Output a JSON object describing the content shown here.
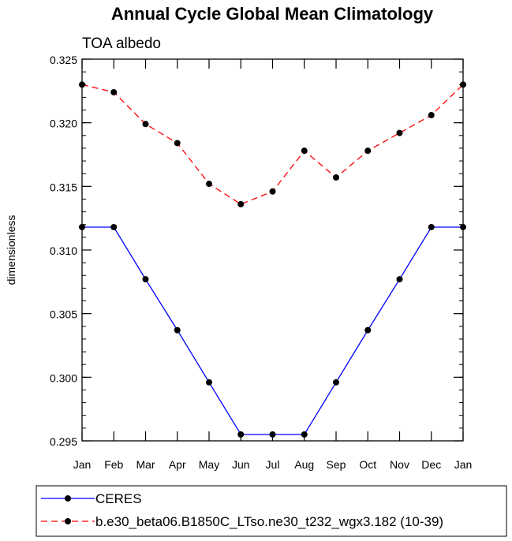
{
  "chart_data": {
    "type": "line",
    "title": "Annual Cycle Global Mean Climatology",
    "subtitle": "TOA albedo",
    "xlabel": "",
    "ylabel": "dimensionless",
    "categories": [
      "Jan",
      "Feb",
      "Mar",
      "Apr",
      "May",
      "Jun",
      "Jul",
      "Aug",
      "Sep",
      "Oct",
      "Nov",
      "Dec",
      "Jan"
    ],
    "ylim": [
      0.295,
      0.325
    ],
    "yticks": [
      "0.295",
      "0.300",
      "0.305",
      "0.310",
      "0.315",
      "0.320",
      "0.325"
    ],
    "ytick_values": [
      0.295,
      0.3,
      0.305,
      0.31,
      0.315,
      0.32,
      0.325
    ],
    "legend_position": "bottom",
    "series": [
      {
        "name": "CERES",
        "color": "#0000ff",
        "dash": "solid",
        "values": [
          0.3118,
          0.3118,
          0.3077,
          0.3037,
          0.2996,
          0.2955,
          0.2955,
          0.2955,
          0.2996,
          0.3037,
          0.3077,
          0.3118,
          0.3118
        ]
      },
      {
        "name": "b.e30_beta06.B1850C_LTso.ne30_t232_wgx3.182 (10-39)",
        "color": "#ff0000",
        "dash": "dashed",
        "values": [
          0.323,
          0.3224,
          0.3199,
          0.3184,
          0.3152,
          0.3136,
          0.3146,
          0.3178,
          0.3157,
          0.3178,
          0.3192,
          0.3206,
          0.323
        ]
      }
    ]
  }
}
